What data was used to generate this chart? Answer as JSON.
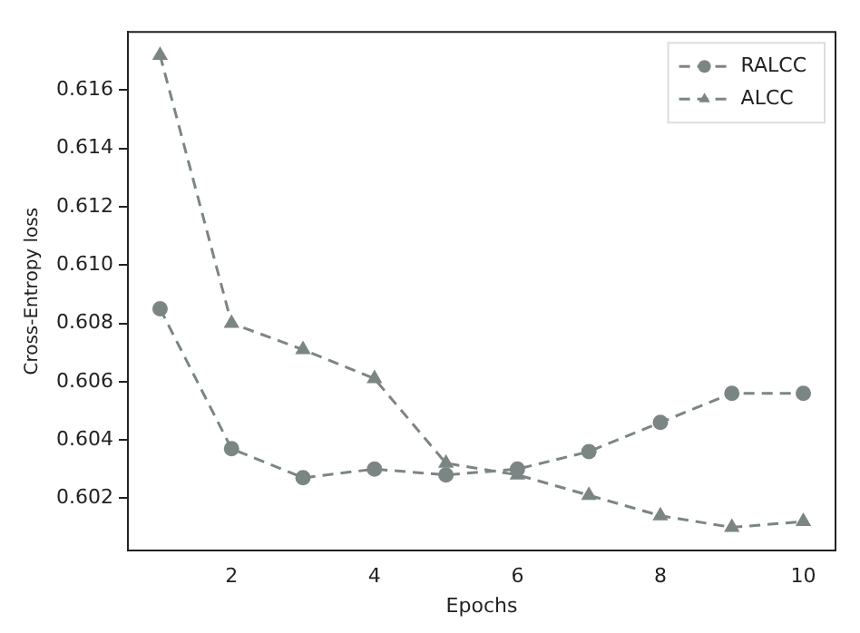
{
  "chart_data": {
    "type": "line",
    "xlabel": "Epochs",
    "ylabel": "Cross-Entropy loss",
    "x": [
      1,
      2,
      3,
      4,
      5,
      6,
      7,
      8,
      9,
      10
    ],
    "series": [
      {
        "name": "RALCC",
        "color": "#7b8684",
        "marker": "circle",
        "values": [
          0.6085,
          0.6037,
          0.6027,
          0.603,
          0.6028,
          0.603,
          0.6036,
          0.6046,
          0.6056,
          0.6056
        ]
      },
      {
        "name": "ALCC",
        "color": "#7b8684",
        "marker": "triangle",
        "values": [
          0.6172,
          0.608,
          0.6071,
          0.6061,
          0.6032,
          0.6028,
          0.6021,
          0.6014,
          0.601,
          0.6012
        ]
      }
    ],
    "line_style": "dashed",
    "xlim": [
      0.55,
      10.45
    ],
    "ylim": [
      0.6002,
      0.618
    ],
    "xticks": [
      2,
      4,
      6,
      8,
      10
    ],
    "yticks": [
      0.602,
      0.604,
      0.606,
      0.608,
      {
        "value": 0.61,
        "label": "0.610"
      },
      0.612,
      0.614,
      0.616
    ],
    "grid": false,
    "legend": "top right"
  }
}
